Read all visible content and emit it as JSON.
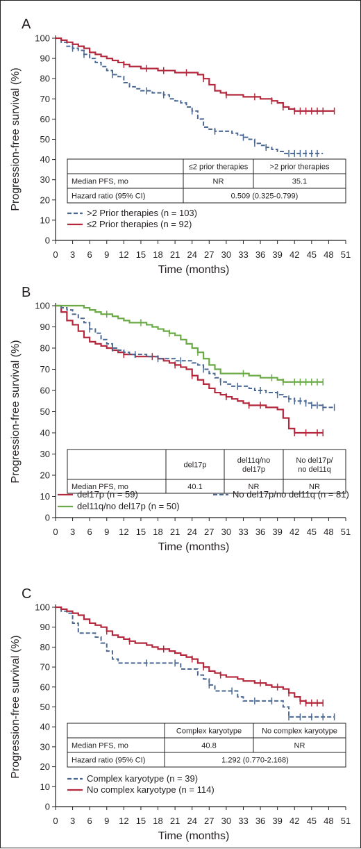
{
  "colors": {
    "red": "#b3283c",
    "blue": "#4a6892",
    "green": "#6aaa46",
    "ink": "#231f20"
  },
  "chart_data": [
    {
      "type": "line",
      "panel": "A",
      "xlabel": "Time (months)",
      "ylabel": "Progression-free survival (%)",
      "xlim": [
        0,
        51
      ],
      "ylim": [
        0,
        100
      ],
      "xticks": [
        0,
        3,
        6,
        9,
        12,
        15,
        18,
        21,
        24,
        27,
        30,
        33,
        36,
        39,
        42,
        45,
        48,
        51
      ],
      "yticks": [
        0,
        10,
        20,
        30,
        40,
        50,
        60,
        70,
        80,
        90,
        100
      ],
      "table": {
        "headers": [
          "",
          "≤2 prior therapies",
          ">2 prior therapies"
        ],
        "rows": [
          {
            "label": "Median PFS, mo",
            "cells": [
              "NR",
              "35.1"
            ]
          },
          {
            "label": "Hazard ratio (95% CI)",
            "cells": [
              "0.509 (0.325-0.799)"
            ]
          }
        ]
      },
      "series": [
        {
          "name": ">2 Prior therapies (n = 103)",
          "color": "blue",
          "dashed": true,
          "x": [
            0,
            1,
            2,
            3,
            4,
            5,
            6,
            7,
            8,
            9,
            10,
            11,
            12,
            13,
            14,
            15,
            16,
            17,
            18,
            19,
            20,
            21,
            22,
            23,
            24,
            25,
            26,
            27,
            28,
            29,
            30,
            31,
            32,
            33,
            34,
            35,
            36,
            37,
            38,
            39,
            40,
            41,
            42,
            43,
            44,
            45,
            46,
            47
          ],
          "y": [
            100,
            98,
            96,
            95,
            94,
            92,
            90,
            88,
            86,
            84,
            82,
            81,
            78,
            76,
            75,
            74,
            74,
            73,
            73,
            72,
            70,
            69,
            68,
            66,
            64,
            60,
            56,
            55,
            54,
            54,
            54,
            53,
            52,
            51,
            50,
            48,
            47,
            46,
            45,
            44,
            43,
            43,
            43,
            43,
            43,
            43,
            43,
            43
          ],
          "censor_x": [
            3,
            5,
            10,
            16,
            19,
            24,
            28,
            33,
            35,
            37,
            41,
            42,
            43,
            44,
            45,
            46
          ]
        },
        {
          "name": "≤2 Prior therapies (n = 92)",
          "color": "red",
          "dashed": false,
          "x": [
            0,
            1,
            2,
            3,
            4,
            5,
            6,
            7,
            8,
            9,
            10,
            11,
            12,
            13,
            14,
            15,
            16,
            17,
            18,
            19,
            20,
            21,
            22,
            23,
            24,
            25,
            26,
            27,
            28,
            29,
            30,
            31,
            32,
            33,
            34,
            35,
            36,
            37,
            38,
            39,
            40,
            41,
            42,
            43,
            44,
            45,
            46,
            47,
            48,
            49
          ],
          "y": [
            100,
            99,
            98,
            97,
            96,
            95,
            93,
            92,
            91,
            90,
            89,
            88,
            87,
            86,
            86,
            85,
            85,
            85,
            84,
            84,
            84,
            83,
            83,
            83,
            83,
            82,
            80,
            77,
            74,
            73,
            72,
            72,
            72,
            71,
            71,
            71,
            70,
            70,
            69,
            68,
            66,
            65,
            64,
            64,
            64,
            64,
            64,
            64,
            64,
            64
          ],
          "censor_x": [
            12,
            16,
            19,
            23,
            26,
            30,
            35,
            38,
            40,
            42,
            43,
            44,
            45,
            46,
            47,
            49
          ]
        }
      ],
      "legend": [
        ">2 Prior therapies (n = 103)",
        "≤2 Prior therapies (n = 92)"
      ]
    },
    {
      "type": "line",
      "panel": "B",
      "xlabel": "Time (months)",
      "ylabel": "Progression-free survival (%)",
      "xlim": [
        0,
        51
      ],
      "ylim": [
        0,
        100
      ],
      "xticks": [
        0,
        3,
        6,
        9,
        12,
        15,
        18,
        21,
        24,
        27,
        30,
        33,
        36,
        39,
        42,
        45,
        48,
        51
      ],
      "yticks": [
        0,
        10,
        20,
        30,
        40,
        50,
        60,
        70,
        80,
        90,
        100
      ],
      "table": {
        "headers": [
          "",
          "del17p",
          "del11q/no del17p",
          "No del17p/ no del11q"
        ],
        "rows": [
          {
            "label": "Median PFS, mo",
            "cells": [
              "40.1",
              "NR",
              "NR"
            ]
          }
        ]
      },
      "series": [
        {
          "name": "del17p (n = 59)",
          "color": "red",
          "dashed": false,
          "x": [
            0,
            1,
            2,
            3,
            4,
            5,
            6,
            7,
            8,
            9,
            10,
            11,
            12,
            13,
            14,
            15,
            16,
            17,
            18,
            19,
            20,
            21,
            22,
            23,
            24,
            25,
            26,
            27,
            28,
            29,
            30,
            31,
            32,
            33,
            34,
            35,
            36,
            37,
            38,
            39,
            40,
            41,
            42,
            43,
            44,
            45,
            46,
            47
          ],
          "y": [
            100,
            97,
            93,
            91,
            88,
            85,
            83,
            82,
            81,
            80,
            79,
            78,
            77,
            77,
            76,
            76,
            76,
            76,
            75,
            74,
            73,
            72,
            71,
            70,
            67,
            65,
            63,
            61,
            59,
            58,
            57,
            56,
            55,
            54,
            53,
            53,
            53,
            52,
            52,
            51,
            47,
            42,
            40,
            40,
            40,
            40,
            40,
            40
          ],
          "censor_x": [
            12,
            17,
            21,
            24,
            30,
            34,
            36,
            42,
            44,
            46,
            47
          ]
        },
        {
          "name": "No del17p/no del11q (n = 81)",
          "color": "blue",
          "dashed": true,
          "x": [
            0,
            1,
            2,
            3,
            4,
            5,
            6,
            7,
            8,
            9,
            10,
            11,
            12,
            13,
            14,
            15,
            16,
            17,
            18,
            19,
            20,
            21,
            22,
            23,
            24,
            25,
            26,
            27,
            28,
            29,
            30,
            31,
            32,
            33,
            34,
            35,
            36,
            37,
            38,
            39,
            40,
            41,
            42,
            43,
            44,
            45,
            46,
            47,
            48,
            49
          ],
          "y": [
            100,
            99,
            98,
            96,
            94,
            92,
            89,
            87,
            84,
            82,
            80,
            79,
            78,
            77,
            77,
            77,
            76,
            76,
            75,
            75,
            75,
            74,
            74,
            74,
            73,
            72,
            70,
            68,
            66,
            64,
            63,
            62,
            62,
            62,
            61,
            60,
            60,
            59,
            59,
            58,
            57,
            56,
            55,
            55,
            54,
            53,
            53,
            52,
            52,
            52
          ],
          "censor_x": [
            6,
            10,
            14,
            18,
            22,
            26,
            29,
            32,
            36,
            39,
            41,
            42,
            43,
            44,
            45,
            46,
            47,
            49
          ]
        },
        {
          "name": "del11q/no del17p (n = 50)",
          "color": "green",
          "dashed": false,
          "x": [
            0,
            1,
            2,
            3,
            4,
            5,
            6,
            7,
            8,
            9,
            10,
            11,
            12,
            13,
            14,
            15,
            16,
            17,
            18,
            19,
            20,
            21,
            22,
            23,
            24,
            25,
            26,
            27,
            28,
            29,
            30,
            31,
            32,
            33,
            34,
            35,
            36,
            37,
            38,
            39,
            40,
            41,
            42,
            43,
            44,
            45,
            46,
            47
          ],
          "y": [
            100,
            100,
            100,
            100,
            100,
            99,
            98,
            97,
            96,
            96,
            95,
            94,
            93,
            92,
            92,
            92,
            91,
            90,
            89,
            88,
            87,
            86,
            84,
            82,
            80,
            78,
            75,
            72,
            70,
            68,
            68,
            68,
            68,
            68,
            67,
            67,
            66,
            66,
            66,
            65,
            64,
            64,
            64,
            64,
            64,
            64,
            64,
            64
          ],
          "censor_x": [
            9,
            15,
            20,
            25,
            33,
            38,
            40,
            42,
            43,
            44,
            45,
            46,
            47
          ]
        }
      ],
      "legend": [
        "del17p (n = 59)",
        "No del17p/no del11q (n = 81)",
        "del11q/no del17p (n = 50)"
      ]
    },
    {
      "type": "line",
      "panel": "C",
      "xlabel": "Time (months)",
      "ylabel": "Progression-free survival (%)",
      "xlim": [
        0,
        51
      ],
      "ylim": [
        0,
        100
      ],
      "xticks": [
        0,
        3,
        6,
        9,
        12,
        15,
        18,
        21,
        24,
        27,
        30,
        33,
        36,
        39,
        42,
        45,
        48,
        51
      ],
      "yticks": [
        0,
        10,
        20,
        30,
        40,
        50,
        60,
        70,
        80,
        90,
        100
      ],
      "table": {
        "headers": [
          "",
          "Complex karyotype",
          "No complex karyotype"
        ],
        "rows": [
          {
            "label": "Median PFS, mo",
            "cells": [
              "40.8",
              "NR"
            ]
          },
          {
            "label": "Hazard ratio (95% CI)",
            "cells": [
              "1.292 (0.770-2.168)"
            ]
          }
        ]
      },
      "series": [
        {
          "name": "Complex karyotype (n = 39)",
          "color": "blue",
          "dashed": true,
          "x": [
            0,
            1,
            2,
            3,
            4,
            5,
            6,
            7,
            8,
            9,
            10,
            11,
            12,
            13,
            14,
            15,
            16,
            17,
            18,
            19,
            20,
            21,
            22,
            23,
            24,
            25,
            26,
            27,
            28,
            29,
            30,
            31,
            32,
            33,
            34,
            35,
            36,
            37,
            38,
            39,
            40,
            41,
            42,
            43,
            44,
            45,
            46,
            47,
            48,
            49
          ],
          "y": [
            100,
            98,
            97,
            92,
            87,
            87,
            87,
            85,
            82,
            78,
            74,
            72,
            72,
            72,
            72,
            72,
            72,
            72,
            72,
            72,
            72,
            72,
            69,
            69,
            69,
            66,
            64,
            61,
            58,
            58,
            58,
            58,
            55,
            53,
            53,
            53,
            53,
            53,
            53,
            53,
            50,
            45,
            45,
            45,
            45,
            45,
            45,
            45,
            45,
            45
          ],
          "censor_x": [
            16,
            21,
            27,
            31,
            35,
            38,
            41,
            43,
            45,
            47,
            49
          ]
        },
        {
          "name": "No complex karyotype (n = 114)",
          "color": "red",
          "dashed": false,
          "x": [
            0,
            1,
            2,
            3,
            4,
            5,
            6,
            7,
            8,
            9,
            10,
            11,
            12,
            13,
            14,
            15,
            16,
            17,
            18,
            19,
            20,
            21,
            22,
            23,
            24,
            25,
            26,
            27,
            28,
            29,
            30,
            31,
            32,
            33,
            34,
            35,
            36,
            37,
            38,
            39,
            40,
            41,
            42,
            43,
            44,
            45,
            46,
            47
          ],
          "y": [
            100,
            99,
            98,
            97,
            96,
            94,
            92,
            91,
            90,
            88,
            86,
            85,
            84,
            83,
            82,
            82,
            81,
            80,
            79,
            79,
            78,
            77,
            76,
            75,
            74,
            72,
            70,
            68,
            67,
            66,
            65,
            65,
            64,
            63,
            63,
            62,
            62,
            61,
            60,
            60,
            59,
            57,
            55,
            53,
            52,
            52,
            52,
            52
          ],
          "censor_x": [
            9,
            13,
            19,
            24,
            26,
            29,
            36,
            39,
            41,
            43,
            44,
            45,
            46,
            47
          ]
        }
      ],
      "legend": [
        "Complex karyotype (n = 39)",
        "No complex karyotype (n = 114)"
      ]
    }
  ]
}
